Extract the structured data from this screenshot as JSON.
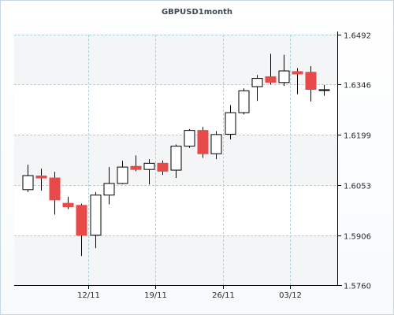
{
  "chart_data": {
    "type": "candlestick",
    "title": "GBPUSD1month",
    "y_ticks": [
      "1.6492",
      "1.6346",
      "1.6199",
      "1.6053",
      "1.5906",
      "1.5760"
    ],
    "y_tick_values": [
      1.6492,
      1.6346,
      1.6199,
      1.6053,
      1.5906,
      1.576
    ],
    "ylim": [
      1.576,
      1.6492
    ],
    "y_axis_side": "right",
    "x_ticks": [
      {
        "label": "12/11",
        "index": 4.5
      },
      {
        "label": "19/11",
        "index": 9.5
      },
      {
        "label": "26/11",
        "index": 14.5
      },
      {
        "label": "03/12",
        "index": 19.5
      }
    ],
    "grid": true,
    "colors": {
      "up": "#ffffff",
      "down": "#e84a4a",
      "wick": "#000000",
      "grid": "#a9d4d8",
      "plot_bg": "#ffffff",
      "band_bg": "#f4f5f6"
    },
    "candles": [
      {
        "open": 1.6039,
        "close": 1.608,
        "high": 1.6112,
        "low": 1.6032
      },
      {
        "open": 1.6079,
        "close": 1.6073,
        "high": 1.61,
        "low": 1.6036
      },
      {
        "open": 1.6073,
        "close": 1.6009,
        "high": 1.6091,
        "low": 1.5966
      },
      {
        "open": 1.5999,
        "close": 1.5989,
        "high": 1.6018,
        "low": 1.5982
      },
      {
        "open": 1.5993,
        "close": 1.5906,
        "high": 1.5998,
        "low": 1.5845
      },
      {
        "open": 1.5906,
        "close": 1.6023,
        "high": 1.6032,
        "low": 1.5868
      },
      {
        "open": 1.6023,
        "close": 1.6057,
        "high": 1.6105,
        "low": 1.5996
      },
      {
        "open": 1.6057,
        "close": 1.6105,
        "high": 1.6123,
        "low": 1.6055
      },
      {
        "open": 1.6107,
        "close": 1.6098,
        "high": 1.6139,
        "low": 1.6093
      },
      {
        "open": 1.6098,
        "close": 1.6116,
        "high": 1.6128,
        "low": 1.6054
      },
      {
        "open": 1.6116,
        "close": 1.6093,
        "high": 1.6124,
        "low": 1.6082
      },
      {
        "open": 1.6096,
        "close": 1.6166,
        "high": 1.6171,
        "low": 1.6073
      },
      {
        "open": 1.6166,
        "close": 1.6212,
        "high": 1.6216,
        "low": 1.6161
      },
      {
        "open": 1.6212,
        "close": 1.6144,
        "high": 1.6222,
        "low": 1.6132
      },
      {
        "open": 1.6144,
        "close": 1.62,
        "high": 1.621,
        "low": 1.6128
      },
      {
        "open": 1.6201,
        "close": 1.6264,
        "high": 1.6286,
        "low": 1.6186
      },
      {
        "open": 1.6264,
        "close": 1.6328,
        "high": 1.6335,
        "low": 1.6259
      },
      {
        "open": 1.634,
        "close": 1.6364,
        "high": 1.6374,
        "low": 1.6298
      },
      {
        "open": 1.6369,
        "close": 1.6353,
        "high": 1.6436,
        "low": 1.6346
      },
      {
        "open": 1.6352,
        "close": 1.6386,
        "high": 1.6433,
        "low": 1.6342
      },
      {
        "open": 1.6384,
        "close": 1.6377,
        "high": 1.6394,
        "low": 1.6318
      },
      {
        "open": 1.6382,
        "close": 1.6332,
        "high": 1.64,
        "low": 1.6297
      },
      {
        "open": 1.633,
        "close": 1.6331,
        "high": 1.6345,
        "low": 1.6313
      }
    ]
  }
}
